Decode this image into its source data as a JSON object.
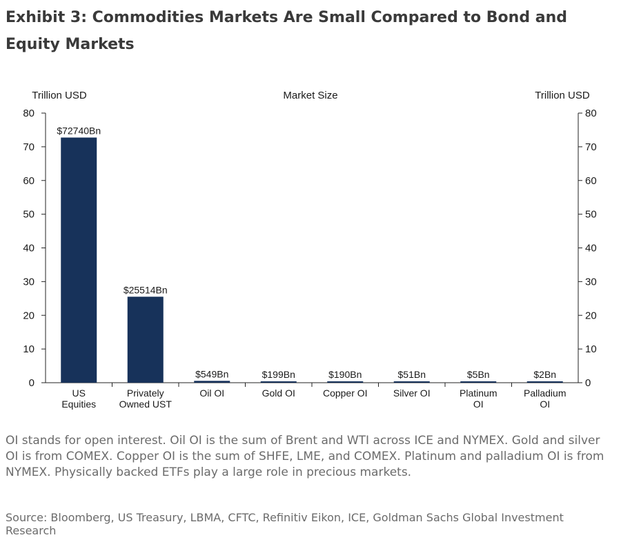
{
  "header": {
    "title": "Exhibit 3: Commodities Markets Are Small Compared to Bond and Equity Markets"
  },
  "chart_data": {
    "type": "bar",
    "title": "Market Size",
    "ylabel_left": "Trillion USD",
    "ylabel_right": "Trillion USD",
    "ylim": [
      0,
      80
    ],
    "yticks": [
      0,
      10,
      20,
      30,
      40,
      50,
      60,
      70,
      80
    ],
    "grid": false,
    "categories": [
      [
        "US",
        "Equities"
      ],
      [
        "Privately",
        "Owned UST"
      ],
      [
        "Oil OI"
      ],
      [
        "Gold OI"
      ],
      [
        "Copper OI"
      ],
      [
        "Silver OI"
      ],
      [
        "Platinum",
        "OI"
      ],
      [
        "Palladium",
        "OI"
      ]
    ],
    "values": [
      72.74,
      25.514,
      0.549,
      0.199,
      0.19,
      0.051,
      0.005,
      0.002
    ],
    "data_labels": [
      "$72740Bn",
      "$25514Bn",
      "$549Bn",
      "$199Bn",
      "$190Bn",
      "$51Bn",
      "$5Bn",
      "$2Bn"
    ],
    "bar_color": "#17325a"
  },
  "footer": {
    "note": "OI stands for open interest. Oil OI is the sum of Brent and WTI across ICE and NYMEX. Gold and silver OI is from COMEX. Copper OI is the sum of SHFE, LME, and COMEX. Platinum and palladium OI is from NYMEX. Physically backed ETFs play a large role in precious markets.",
    "source": "Source: Bloomberg, US Treasury, LBMA, CFTC, Refinitiv Eikon, ICE, Goldman Sachs Global Investment Research"
  }
}
